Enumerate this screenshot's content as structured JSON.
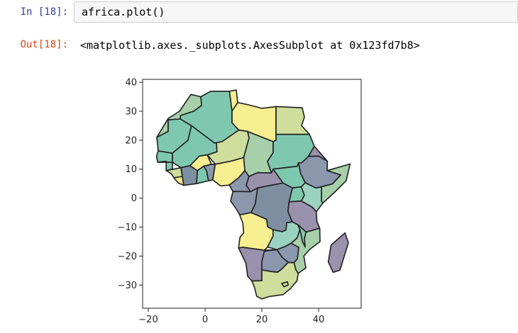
{
  "cell": {
    "in_prompt": "In [18]:",
    "code": "africa.plot()",
    "out_prompt": "Out[18]:",
    "output": "<matplotlib.axes._subplots.AxesSubplot at 0x123fd7b8>"
  },
  "chart_data": {
    "type": "map",
    "title": "",
    "xlabel": "",
    "ylabel": "",
    "x_ticks": [
      -20,
      0,
      20,
      40
    ],
    "y_ticks": [
      40,
      30,
      20,
      10,
      0,
      -10,
      -20,
      -30
    ],
    "xlim": [
      -22,
      55
    ],
    "ylim": [
      -38,
      41
    ],
    "grid": false,
    "colormap": "viridis",
    "palette": [
      "#9ad2bf",
      "#7fc8b0",
      "#a7cfa9",
      "#cfdd9d",
      "#f7ee90",
      "#8a97ad",
      "#9a91ad",
      "#7d8fa0"
    ],
    "edge_color": "#1f1f1f"
  }
}
